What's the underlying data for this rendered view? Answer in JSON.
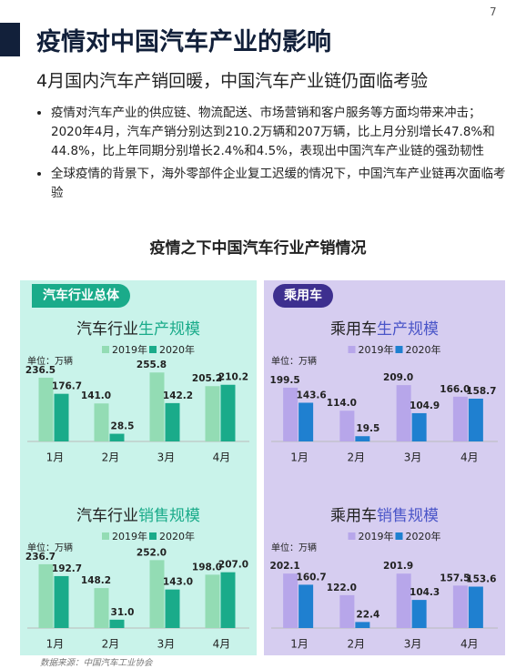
{
  "page_number": "7",
  "title": "疫情对中国汽车产业的影响",
  "subtitle": "4月国内汽车产销回暖，中国汽车产业链仍面临考验",
  "bullets": [
    "疫情对汽车产业的供应链、物流配送、市场营销和客户服务等方面均带来冲击；2020年4月，汽车产销分别达到210.2万辆和207万辆，比上月分别增长47.8%和44.8%，比上年同期分别增长2.4%和4.5%，表现出中国汽车产业链的强劲韧性",
    "全球疫情的背景下，海外零部件企业复工迟缓的情况下，中国汽车产业链再次面临考验"
  ],
  "section_title": "疫情之下中国汽车行业产销情况",
  "panels": [
    "汽车行业总体",
    "乘用车"
  ],
  "source": "数据来源：中国汽车工业协会",
  "chart_data": [
    {
      "type": "bar",
      "title": [
        "汽车行业",
        "生产规模"
      ],
      "unit": "单位：万辆",
      "categories": [
        "1月",
        "2月",
        "3月",
        "4月"
      ],
      "ylim": [
        0,
        260
      ],
      "series": [
        {
          "name": "2019年",
          "color": "#93dcb4",
          "values": [
            236.5,
            141.0,
            255.8,
            205.2
          ],
          "value_labels": [
            "236.5",
            "141.0",
            "255.8",
            "205.2"
          ]
        },
        {
          "name": "2020年",
          "color": "#1aab8a",
          "values": [
            176.7,
            28.5,
            142.2,
            210.2
          ],
          "value_labels": [
            "176.7",
            "28.5",
            "142.2",
            "210.2"
          ]
        }
      ]
    },
    {
      "type": "bar",
      "title": [
        "乘用车",
        "生产规模"
      ],
      "unit": "单位：万辆",
      "categories": [
        "1月",
        "2月",
        "3月",
        "4月"
      ],
      "ylim": [
        0,
        260
      ],
      "series": [
        {
          "name": "2019年",
          "color": "#b7a6ea",
          "values": [
            199.5,
            114.0,
            209.0,
            166.0
          ],
          "value_labels": [
            "199.5",
            "114.0",
            "209.0",
            "166.0"
          ]
        },
        {
          "name": "2020年",
          "color": "#1f80d0",
          "values": [
            143.6,
            19.5,
            104.9,
            158.7
          ],
          "value_labels": [
            "143.6",
            "19.5",
            "104.9",
            "158.7"
          ]
        }
      ]
    },
    {
      "type": "bar",
      "title": [
        "汽车行业",
        "销售规模"
      ],
      "unit": "单位：万辆",
      "categories": [
        "1月",
        "2月",
        "3月",
        "4月"
      ],
      "ylim": [
        0,
        260
      ],
      "series": [
        {
          "name": "2019年",
          "color": "#93dcb4",
          "values": [
            236.7,
            148.2,
            252.0,
            198.0
          ],
          "value_labels": [
            "236.7",
            "148.2",
            "252.0",
            "198.0"
          ]
        },
        {
          "name": "2020年",
          "color": "#1aab8a",
          "values": [
            192.7,
            31.0,
            143.0,
            207.0
          ],
          "value_labels": [
            "192.7",
            "31.0",
            "143.0",
            "207.0"
          ]
        }
      ]
    },
    {
      "type": "bar",
      "title": [
        "乘用车",
        "销售规模"
      ],
      "unit": "单位：万辆",
      "categories": [
        "1月",
        "2月",
        "3月",
        "4月"
      ],
      "ylim": [
        0,
        260
      ],
      "series": [
        {
          "name": "2019年",
          "color": "#b7a6ea",
          "values": [
            202.1,
            122.0,
            201.9,
            157.5
          ],
          "value_labels": [
            "202.1",
            "122.0",
            "201.9",
            "157.5"
          ]
        },
        {
          "name": "2020年",
          "color": "#1f80d0",
          "values": [
            160.7,
            22.4,
            104.3,
            153.6
          ],
          "value_labels": [
            "160.7",
            "22.4",
            "104.3",
            "153.6"
          ]
        }
      ]
    }
  ]
}
